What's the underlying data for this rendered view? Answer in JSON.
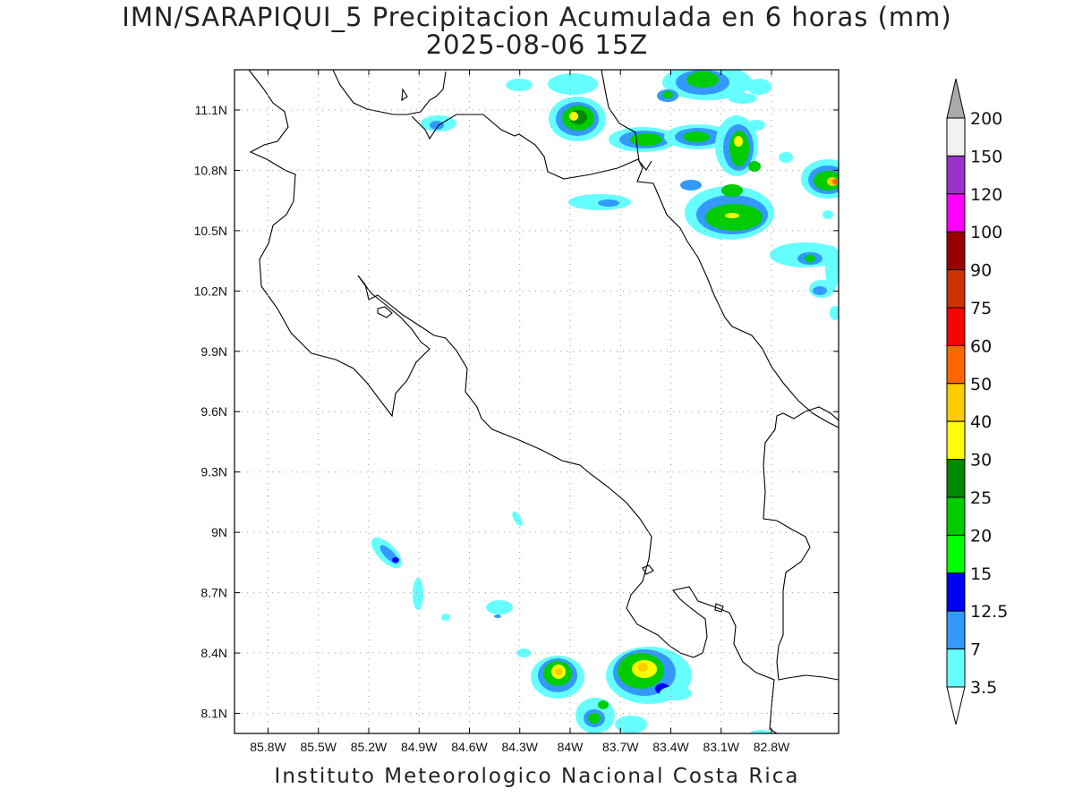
{
  "title": {
    "line1": "IMN/SARAPIQUI_5 Precipitacion Acumulada en 6 horas (mm)",
    "line2": "2025-08-06 15Z"
  },
  "footer": "Instituto Meteorologico Nacional Costa Rica",
  "map": {
    "lon_range": [
      -86.0,
      -82.4
    ],
    "lat_range": [
      8.0,
      11.3
    ],
    "lon_ticks": [
      "85.8W",
      "85.5W",
      "85.2W",
      "84.9W",
      "84.6W",
      "84.3W",
      "84W",
      "83.7W",
      "83.4W",
      "83.1W",
      "82.8W"
    ],
    "lat_ticks": [
      "11.1N",
      "10.8N",
      "10.5N",
      "10.2N",
      "9.9N",
      "9.6N",
      "9.3N",
      "9N",
      "8.7N",
      "8.4N",
      "8.1N"
    ],
    "gridlines": "dotted"
  },
  "colorbar": {
    "levels": [
      "3.5",
      "7",
      "12.5",
      "15",
      "20",
      "25",
      "30",
      "40",
      "50",
      "60",
      "75",
      "90",
      "100",
      "120",
      "150",
      "200"
    ],
    "colors": [
      "#66ffff",
      "#3399ff",
      "#0000ff",
      "#00ff00",
      "#00cc00",
      "#008800",
      "#ffff00",
      "#ffcc00",
      "#ff6600",
      "#ff0000",
      "#cc3300",
      "#990000",
      "#ff00ff",
      "#9933cc",
      "#f2f2f2",
      "#aaaaaa"
    ],
    "top_arrow_color": "#aaaaaa",
    "bottom_arrow_color": "#ffffff"
  },
  "precipitation_cells": [
    {
      "name": "north-coast-1",
      "lon": -84.0,
      "lat": 11.08,
      "level": "30"
    },
    {
      "name": "north-coast-2",
      "lon": -83.72,
      "lat": 10.98,
      "level": "20"
    },
    {
      "name": "north-coast-3",
      "lon": -83.35,
      "lat": 10.98,
      "level": "20"
    },
    {
      "name": "north-coast-4",
      "lon": -83.1,
      "lat": 10.92,
      "level": "40"
    },
    {
      "name": "north-coast-5",
      "lon": -83.0,
      "lat": 10.58,
      "level": "25"
    },
    {
      "name": "north-coast-6",
      "lon": -82.5,
      "lat": 10.78,
      "level": "60"
    },
    {
      "name": "north-coast-7",
      "lon": -83.6,
      "lat": 11.2,
      "level": "20"
    },
    {
      "name": "offshore-east",
      "lon": -82.55,
      "lat": 10.35,
      "level": "12.5"
    },
    {
      "name": "nicoya-offshore",
      "lon": -85.1,
      "lat": 8.9,
      "level": "12.5"
    },
    {
      "name": "osa-west",
      "lon": -84.15,
      "lat": 8.3,
      "level": "40"
    },
    {
      "name": "osa-central",
      "lon": -83.68,
      "lat": 8.32,
      "level": "50"
    },
    {
      "name": "osa-south",
      "lon": -83.95,
      "lat": 8.08,
      "level": "20"
    }
  ]
}
